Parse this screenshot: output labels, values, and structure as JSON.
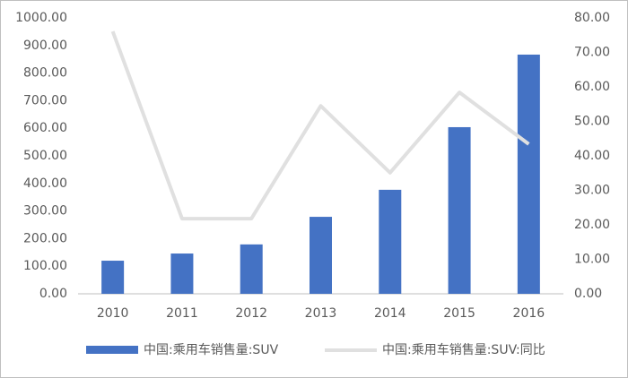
{
  "chart_data": {
    "type": "bar-line",
    "categories": [
      "2010",
      "2011",
      "2012",
      "2013",
      "2014",
      "2015",
      "2016"
    ],
    "series": [
      {
        "name": "中国:乘用车销售量:SUV",
        "type": "bar",
        "color": "#4472c4",
        "values": [
          120,
          146,
          179,
          279,
          377,
          604,
          867
        ]
      },
      {
        "name": "中国:乘用车销售量:SUV:同比",
        "type": "line",
        "axis": "y2",
        "color": "#e0e0e0",
        "values": [
          76.1,
          21.8,
          21.8,
          54.5,
          35.1,
          58.4,
          43.4
        ]
      }
    ],
    "ylim": [
      0,
      1000
    ],
    "yticks": [
      {
        "value": 0,
        "label": "0.00"
      },
      {
        "value": 100,
        "label": "100.00"
      },
      {
        "value": 200,
        "label": "200.00"
      },
      {
        "value": 300,
        "label": "300.00"
      },
      {
        "value": 400,
        "label": "400.00"
      },
      {
        "value": 500,
        "label": "500.00"
      },
      {
        "value": 600,
        "label": "600.00"
      },
      {
        "value": 700,
        "label": "700.00"
      },
      {
        "value": 800,
        "label": "800.00"
      },
      {
        "value": 900,
        "label": "900.00"
      },
      {
        "value": 1000,
        "label": "1000.00"
      }
    ],
    "y2lim": [
      0,
      80
    ],
    "y2ticks": [
      {
        "value": 0,
        "label": "0.00"
      },
      {
        "value": 10,
        "label": "10.00"
      },
      {
        "value": 20,
        "label": "20.00"
      },
      {
        "value": 30,
        "label": "30.00"
      },
      {
        "value": 40,
        "label": "40.00"
      },
      {
        "value": 50,
        "label": "50.00"
      },
      {
        "value": 60,
        "label": "60.00"
      },
      {
        "value": 70,
        "label": "70.00"
      },
      {
        "value": 80,
        "label": "80.00"
      }
    ],
    "grid": false,
    "legend": "bottom"
  }
}
